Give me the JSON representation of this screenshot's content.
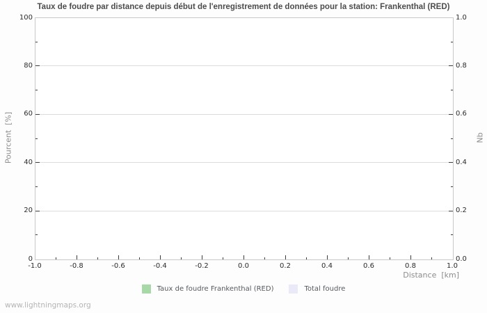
{
  "watermark": "www.lightningmaps.org",
  "chart_data": {
    "type": "bar",
    "title": "Taux de foudre par distance depuis début de l'enregistrement de données pour la station: Frankenthal (RED)",
    "plot_empty": true,
    "grid": "horizontal-only",
    "legend_position": "bottom-center",
    "x_axis": {
      "label": "Distance  [km]",
      "min": -1.0,
      "max": 1.0,
      "tick_labels": [
        "-1.0",
        "-0.8",
        "-0.6",
        "-0.4",
        "-0.2",
        "0.0",
        "0.2",
        "0.4",
        "0.6",
        "0.8",
        "1.0"
      ],
      "minor_ticks_between_majors": 1
    },
    "y_axis_left": {
      "label": "Pourcent  [%]",
      "min": 0,
      "max": 100,
      "tick_labels": [
        "0",
        "20",
        "40",
        "60",
        "80",
        "100"
      ],
      "minor_ticks_between_majors": 1
    },
    "y_axis_right": {
      "label": "Nb",
      "min": 0.0,
      "max": 1.0,
      "tick_labels": [
        "0.0",
        "0.2",
        "0.4",
        "0.6",
        "0.8",
        "1.0"
      ],
      "minor_ticks_between_majors": 1
    },
    "series": [
      {
        "name": "Taux de foudre Frankenthal (RED)",
        "color": "#a8d8a8",
        "values": []
      },
      {
        "name": "Total foudre",
        "color": "#e9e9f7",
        "values": []
      }
    ]
  }
}
